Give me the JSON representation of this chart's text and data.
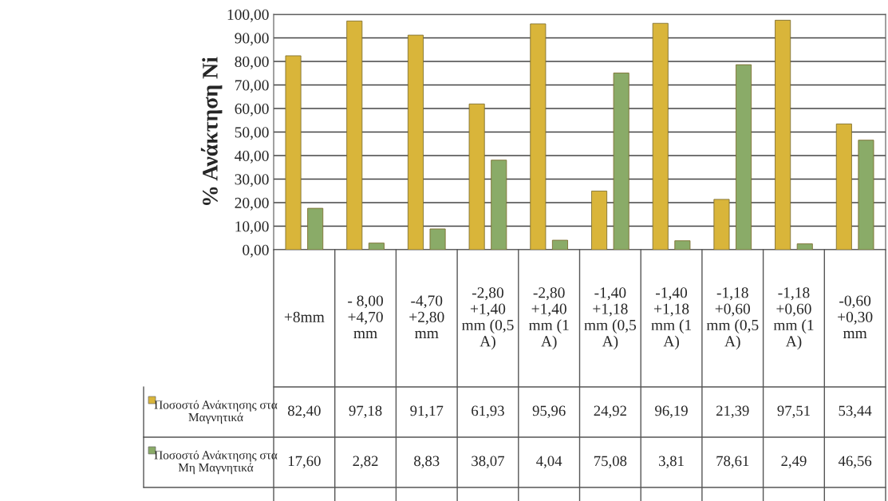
{
  "chart_data": {
    "type": "bar",
    "ylabel": "% Ανάκτηση Ni",
    "categories": [
      "+8mm",
      "- 8,00 +4,70 mm",
      "-4,70 +2,80 mm",
      "-2,80 +1,40 mm (0,5 A)",
      "-2,80 +1,40 mm (1 A)",
      "-1,40 +1,18 mm (0,5 A)",
      "-1,40 +1,18 mm (1 A)",
      "-1,18 +0,60 mm (0,5 A)",
      "-1,18 +0,60 mm (1 A)",
      "-0,60 +0,30 mm"
    ],
    "series": [
      {
        "name": "Ποσοστό Ανάκτησης στα Μαγνητικά",
        "color": "#d9b53a",
        "values": [
          82.4,
          97.18,
          91.17,
          61.93,
          95.96,
          24.92,
          96.19,
          21.39,
          97.51,
          53.44
        ],
        "value_labels": [
          "82,40",
          "97,18",
          "91,17",
          "61,93",
          "95,96",
          "24,92",
          "96,19",
          "21,39",
          "97,51",
          "53,44"
        ]
      },
      {
        "name": "Ποσοστό Ανάκτησης στα Μη Μαγνητικά",
        "color": "#8aab68",
        "values": [
          17.6,
          2.82,
          8.83,
          38.07,
          4.04,
          75.08,
          3.81,
          78.61,
          2.49,
          46.56
        ],
        "value_labels": [
          "17,60",
          "2,82",
          "8,83",
          "38,07",
          "4,04",
          "75,08",
          "3,81",
          "78,61",
          "2,49",
          "46,56"
        ]
      }
    ],
    "ylim": [
      0,
      100
    ],
    "yticks": [
      {
        "value": 0,
        "label": "0,00"
      },
      {
        "value": 10,
        "label": "10,00"
      },
      {
        "value": 20,
        "label": "20,00"
      },
      {
        "value": 30,
        "label": "30,00"
      },
      {
        "value": 40,
        "label": "40,00"
      },
      {
        "value": 50,
        "label": "50,00"
      },
      {
        "value": 60,
        "label": "60,00"
      },
      {
        "value": 70,
        "label": "70,00"
      },
      {
        "value": 80,
        "label": "80,00"
      },
      {
        "value": 90,
        "label": "90,00"
      },
      {
        "value": 100,
        "label": "100,00"
      }
    ],
    "grid": "y",
    "legend": "bottom"
  }
}
